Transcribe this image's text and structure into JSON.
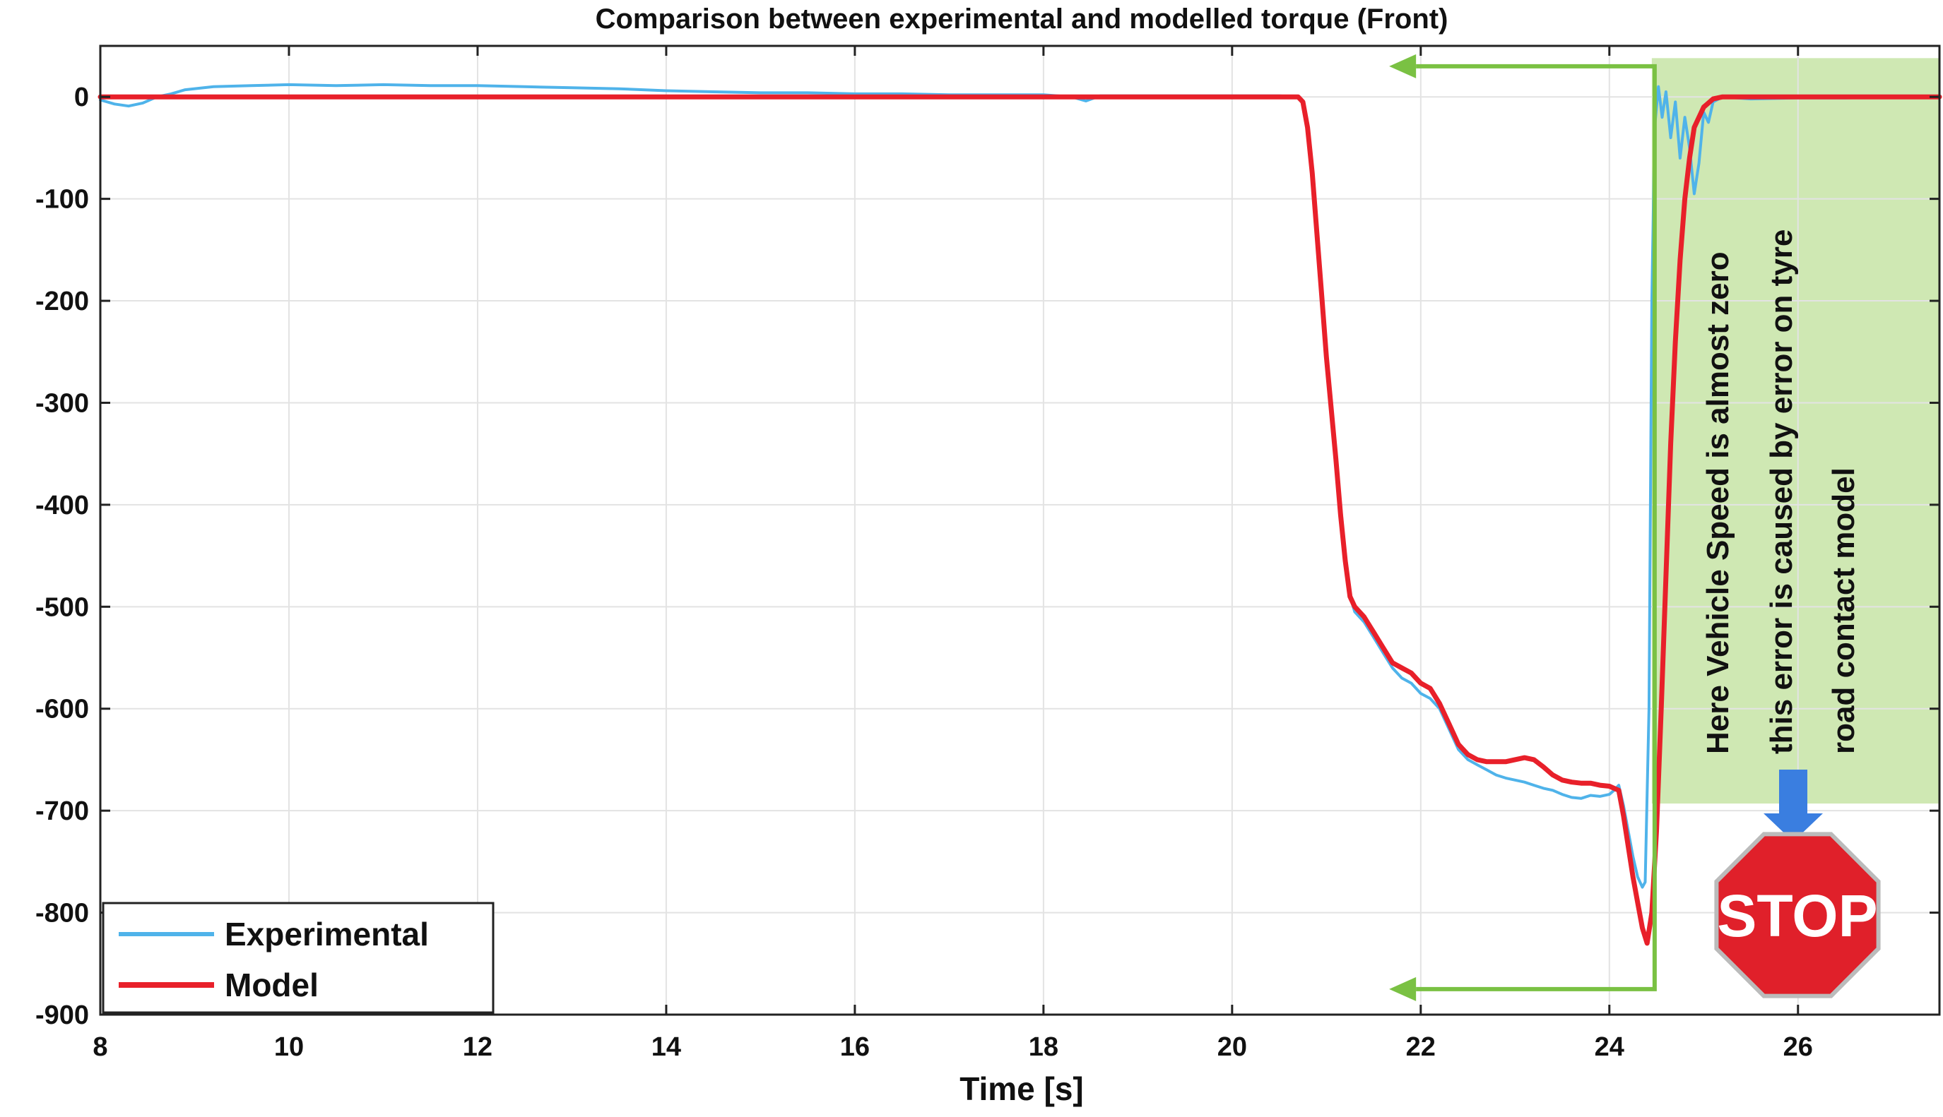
{
  "chart_data": {
    "type": "line",
    "title": "Comparison between experimental and modelled torque (Front)",
    "xlabel": "Time [s]",
    "ylabel": "",
    "xlim": [
      8,
      27.5
    ],
    "ylim": [
      -900,
      50
    ],
    "xticks": [
      8,
      10,
      12,
      14,
      16,
      18,
      20,
      22,
      24,
      26
    ],
    "yticks": [
      0,
      -100,
      -200,
      -300,
      -400,
      -500,
      -600,
      -700,
      -800,
      -900
    ],
    "grid": true,
    "legend_position": "bottom-left",
    "series": [
      {
        "name": "Experimental",
        "color": "#4fb3ea",
        "points": [
          [
            8,
            -3
          ],
          [
            8.15,
            -7
          ],
          [
            8.3,
            -9
          ],
          [
            8.45,
            -6
          ],
          [
            8.6,
            0
          ],
          [
            8.75,
            3
          ],
          [
            8.9,
            7
          ],
          [
            9.2,
            10
          ],
          [
            9.6,
            11
          ],
          [
            10,
            12
          ],
          [
            10.5,
            11
          ],
          [
            11,
            12
          ],
          [
            11.5,
            11
          ],
          [
            12,
            11
          ],
          [
            12.5,
            10
          ],
          [
            13,
            9
          ],
          [
            13.5,
            8
          ],
          [
            14,
            6
          ],
          [
            14.5,
            5
          ],
          [
            15,
            4
          ],
          [
            15.5,
            4
          ],
          [
            16,
            3
          ],
          [
            16.5,
            3
          ],
          [
            17,
            2
          ],
          [
            17.5,
            2
          ],
          [
            18,
            2
          ],
          [
            18.3,
            0
          ],
          [
            18.45,
            -4
          ],
          [
            18.6,
            1
          ],
          [
            19,
            1
          ],
          [
            19.5,
            1
          ],
          [
            20,
            1
          ],
          [
            20.5,
            1
          ],
          [
            20.7,
            0
          ],
          [
            20.75,
            -5
          ],
          [
            20.8,
            -30
          ],
          [
            20.85,
            -70
          ],
          [
            20.9,
            -130
          ],
          [
            20.95,
            -190
          ],
          [
            21.0,
            -250
          ],
          [
            21.05,
            -300
          ],
          [
            21.1,
            -350
          ],
          [
            21.15,
            -400
          ],
          [
            21.2,
            -450
          ],
          [
            21.25,
            -490
          ],
          [
            21.3,
            -505
          ],
          [
            21.4,
            -515
          ],
          [
            21.5,
            -530
          ],
          [
            21.6,
            -545
          ],
          [
            21.7,
            -560
          ],
          [
            21.8,
            -570
          ],
          [
            21.9,
            -575
          ],
          [
            22.0,
            -585
          ],
          [
            22.1,
            -590
          ],
          [
            22.2,
            -600
          ],
          [
            22.3,
            -620
          ],
          [
            22.4,
            -640
          ],
          [
            22.5,
            -650
          ],
          [
            22.6,
            -655
          ],
          [
            22.7,
            -660
          ],
          [
            22.8,
            -665
          ],
          [
            22.9,
            -668
          ],
          [
            23.0,
            -670
          ],
          [
            23.1,
            -672
          ],
          [
            23.2,
            -675
          ],
          [
            23.3,
            -678
          ],
          [
            23.4,
            -680
          ],
          [
            23.5,
            -684
          ],
          [
            23.6,
            -687
          ],
          [
            23.7,
            -688
          ],
          [
            23.8,
            -685
          ],
          [
            23.9,
            -686
          ],
          [
            24.0,
            -684
          ],
          [
            24.05,
            -680
          ],
          [
            24.1,
            -675
          ],
          [
            24.15,
            -695
          ],
          [
            24.2,
            -720
          ],
          [
            24.25,
            -745
          ],
          [
            24.3,
            -765
          ],
          [
            24.35,
            -775
          ],
          [
            24.38,
            -770
          ],
          [
            24.42,
            -600
          ],
          [
            24.45,
            -200
          ],
          [
            24.48,
            -30
          ],
          [
            24.52,
            10
          ],
          [
            24.56,
            -20
          ],
          [
            24.6,
            5
          ],
          [
            24.65,
            -40
          ],
          [
            24.7,
            -5
          ],
          [
            24.75,
            -60
          ],
          [
            24.8,
            -20
          ],
          [
            24.85,
            -50
          ],
          [
            24.9,
            -95
          ],
          [
            24.95,
            -65
          ],
          [
            25.0,
            -15
          ],
          [
            25.05,
            -25
          ],
          [
            25.1,
            -5
          ],
          [
            25.2,
            0
          ],
          [
            25.5,
            -2
          ],
          [
            26,
            -1
          ],
          [
            26.5,
            -1
          ],
          [
            27,
            0
          ],
          [
            27.5,
            0
          ]
        ]
      },
      {
        "name": "Model",
        "color": "#e8202a",
        "points": [
          [
            8,
            0
          ],
          [
            10,
            0
          ],
          [
            12,
            0
          ],
          [
            14,
            0
          ],
          [
            16,
            0
          ],
          [
            18,
            0
          ],
          [
            20,
            0
          ],
          [
            20.7,
            0
          ],
          [
            20.75,
            -5
          ],
          [
            20.8,
            -30
          ],
          [
            20.85,
            -75
          ],
          [
            20.9,
            -135
          ],
          [
            20.95,
            -195
          ],
          [
            21.0,
            -255
          ],
          [
            21.05,
            -305
          ],
          [
            21.1,
            -355
          ],
          [
            21.15,
            -410
          ],
          [
            21.2,
            -455
          ],
          [
            21.25,
            -490
          ],
          [
            21.3,
            -500
          ],
          [
            21.4,
            -510
          ],
          [
            21.5,
            -525
          ],
          [
            21.6,
            -540
          ],
          [
            21.7,
            -555
          ],
          [
            21.8,
            -560
          ],
          [
            21.9,
            -565
          ],
          [
            22.0,
            -575
          ],
          [
            22.1,
            -580
          ],
          [
            22.2,
            -595
          ],
          [
            22.3,
            -615
          ],
          [
            22.4,
            -635
          ],
          [
            22.5,
            -645
          ],
          [
            22.6,
            -650
          ],
          [
            22.7,
            -652
          ],
          [
            22.8,
            -652
          ],
          [
            22.9,
            -652
          ],
          [
            23.0,
            -650
          ],
          [
            23.1,
            -648
          ],
          [
            23.2,
            -650
          ],
          [
            23.3,
            -657
          ],
          [
            23.4,
            -665
          ],
          [
            23.5,
            -670
          ],
          [
            23.6,
            -672
          ],
          [
            23.7,
            -673
          ],
          [
            23.8,
            -673
          ],
          [
            23.9,
            -675
          ],
          [
            24.0,
            -676
          ],
          [
            24.1,
            -680
          ],
          [
            24.15,
            -705
          ],
          [
            24.2,
            -735
          ],
          [
            24.25,
            -765
          ],
          [
            24.3,
            -790
          ],
          [
            24.35,
            -815
          ],
          [
            24.4,
            -830
          ],
          [
            24.45,
            -800
          ],
          [
            24.5,
            -720
          ],
          [
            24.55,
            -600
          ],
          [
            24.6,
            -470
          ],
          [
            24.65,
            -340
          ],
          [
            24.7,
            -240
          ],
          [
            24.75,
            -160
          ],
          [
            24.8,
            -100
          ],
          [
            24.85,
            -60
          ],
          [
            24.9,
            -30
          ],
          [
            25.0,
            -10
          ],
          [
            25.1,
            -2
          ],
          [
            25.2,
            0
          ],
          [
            26,
            0
          ],
          [
            27.5,
            0
          ]
        ]
      }
    ],
    "annotations": {
      "note_lines": [
        "Here Vehicle Speed is almost zero",
        "this error  is caused by error on tyre",
        "road contact  model"
      ],
      "stop_sign": "STOP",
      "highlight_color": "#cfe8b3",
      "arrow_color": "#7ac143",
      "down_arrow_color": "#3a7ee0",
      "stop_color": "#e0202a"
    }
  }
}
